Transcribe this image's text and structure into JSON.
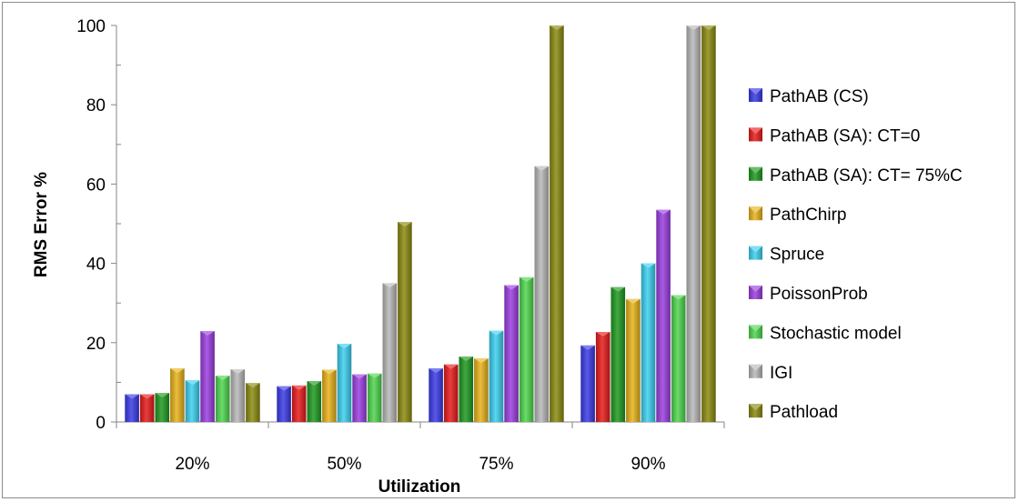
{
  "chart_data": {
    "type": "bar",
    "xlabel": "Utilization",
    "ylabel": "RMS Error %",
    "ylim": [
      0,
      100
    ],
    "yticks": [
      0,
      20,
      40,
      60,
      80,
      100
    ],
    "categories": [
      "20%",
      "50%",
      "75%",
      "90%"
    ],
    "grid": false,
    "legend_position": "right",
    "series": [
      {
        "name": "PathAB (CS)",
        "color": "#3a3ae6",
        "values": [
          7,
          9,
          13.5,
          19.3
        ]
      },
      {
        "name": "PathAB (SA): CT=0",
        "color": "#e81b1b",
        "values": [
          7,
          9.2,
          14.5,
          22.7
        ]
      },
      {
        "name": "PathAB (SA): CT= 75%C",
        "color": "#1f9a1f",
        "values": [
          7.3,
          10.3,
          16.5,
          34
        ]
      },
      {
        "name": "PathChirp",
        "color": "#e8b31a",
        "values": [
          13.5,
          13.2,
          16,
          31
        ]
      },
      {
        "name": "Spruce",
        "color": "#3cd0f0",
        "values": [
          10.5,
          19.7,
          23,
          40
        ]
      },
      {
        "name": "PoissonProb",
        "color": "#9b3ee0",
        "values": [
          22.9,
          12,
          34.5,
          53.5
        ]
      },
      {
        "name": "Stochastic model",
        "color": "#4ed64e",
        "values": [
          11.7,
          12.2,
          36.5,
          32
        ]
      },
      {
        "name": "IGI",
        "color": "#b8b8b8",
        "values": [
          13.3,
          35,
          64.5,
          100
        ]
      },
      {
        "name": "Pathload",
        "color": "#8c8a10",
        "values": [
          9.8,
          50.4,
          100,
          100
        ]
      }
    ]
  }
}
